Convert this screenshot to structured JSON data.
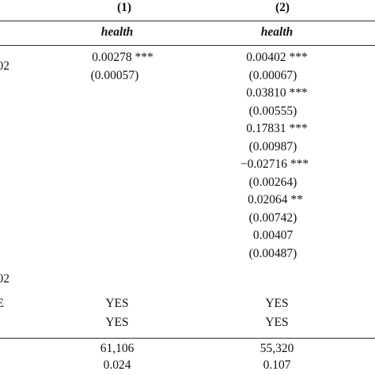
{
  "table": {
    "columns": [
      {
        "header": "(1)",
        "dependent_var": "health"
      },
      {
        "header": "(2)",
        "dependent_var": "health"
      }
    ],
    "row_label_fragments": {
      "row1": "02",
      "row10": "02",
      "fe1": "E"
    },
    "col1": {
      "coef1": "0.00278 ***",
      "se1": "(0.00057)",
      "fe1": "YES",
      "fe2": "YES",
      "obs": "61,106",
      "r2": "0.024"
    },
    "col2": {
      "coef1": "0.00402 ***",
      "se1": "(0.00067)",
      "coef2": "0.03810 ***",
      "se2": "(0.00555)",
      "coef3": "0.17831 ***",
      "se3": "(0.00987)",
      "coef4": "−0.02716 ***",
      "se4": "(0.00264)",
      "coef5": "0.02064 **",
      "se5": "(0.00742)",
      "coef6": "0.00407",
      "se6": "(0.00487)",
      "fe1": "YES",
      "fe2": "YES",
      "obs": "55,320",
      "r2": "0.107"
    }
  }
}
